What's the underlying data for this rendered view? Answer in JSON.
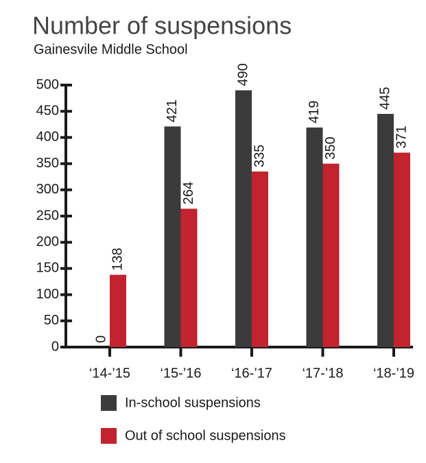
{
  "chart_data": {
    "type": "bar",
    "title": "Number of suspensions",
    "subtitle": "Gainesvile Middle School",
    "categories": [
      "‘14-’15",
      "‘15-’16",
      "‘16-’17",
      "‘17-’18",
      "‘18-’19"
    ],
    "series": [
      {
        "name": "In-school suspensions",
        "color": "#3b3b3c",
        "values": [
          0,
          421,
          490,
          419,
          445
        ]
      },
      {
        "name": "Out of school suspensions",
        "color": "#c1232f",
        "values": [
          138,
          264,
          335,
          350,
          371
        ]
      }
    ],
    "ylim": [
      0,
      500
    ],
    "yticks": [
      0,
      50,
      100,
      150,
      200,
      250,
      300,
      350,
      400,
      450,
      500
    ],
    "grid": false,
    "legend": "bottom"
  }
}
